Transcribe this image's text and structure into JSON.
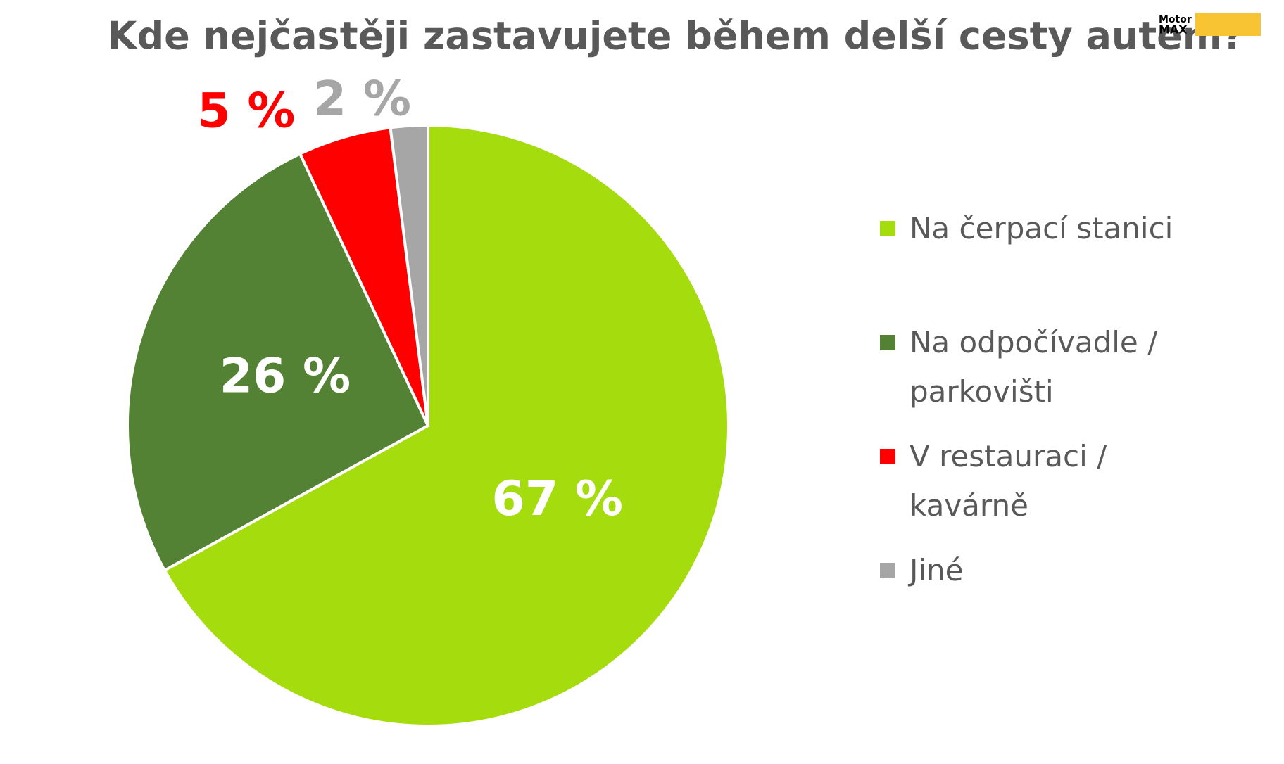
{
  "chart_data": {
    "type": "pie",
    "title": "Kde nejčastěji zastavujete během delší cesty autem?",
    "categories": [
      "Na čerpací stanici",
      "Na odpočívadle / parkovišti",
      "V restauraci / kavárně",
      "Jiné"
    ],
    "values": [
      67,
      26,
      5,
      2
    ],
    "value_labels": [
      "67 %",
      "26 %",
      "5 %",
      "2 %"
    ],
    "colors": [
      "#a5dc0d",
      "#548235",
      "#ff0000",
      "#a6a6a6"
    ],
    "legend": "right"
  },
  "logo": {
    "top": "Motor",
    "bottom": "MAX"
  }
}
